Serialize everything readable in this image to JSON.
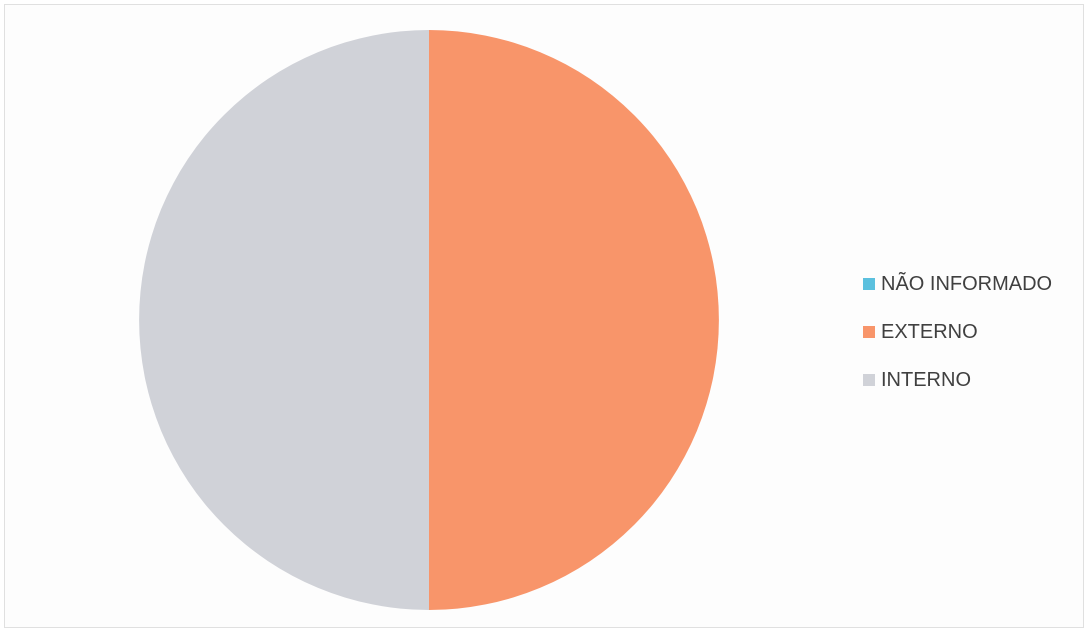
{
  "chart_data": {
    "type": "pie",
    "title": "",
    "series": [
      {
        "name": "NÃO INFORMADO",
        "value": 0,
        "color": "#5bc0de"
      },
      {
        "name": "EXTERNO",
        "value": 50,
        "color": "#f8956a"
      },
      {
        "name": "INTERNO",
        "value": 50,
        "color": "#d0d2d8"
      }
    ],
    "legend": {
      "placement": "right",
      "items": [
        {
          "label": "NÃO INFORMADO",
          "color": "#5bc0de"
        },
        {
          "label": "EXTERNO",
          "color": "#f8956a"
        },
        {
          "label": "INTERNO",
          "color": "#d0d2d8"
        }
      ]
    }
  }
}
